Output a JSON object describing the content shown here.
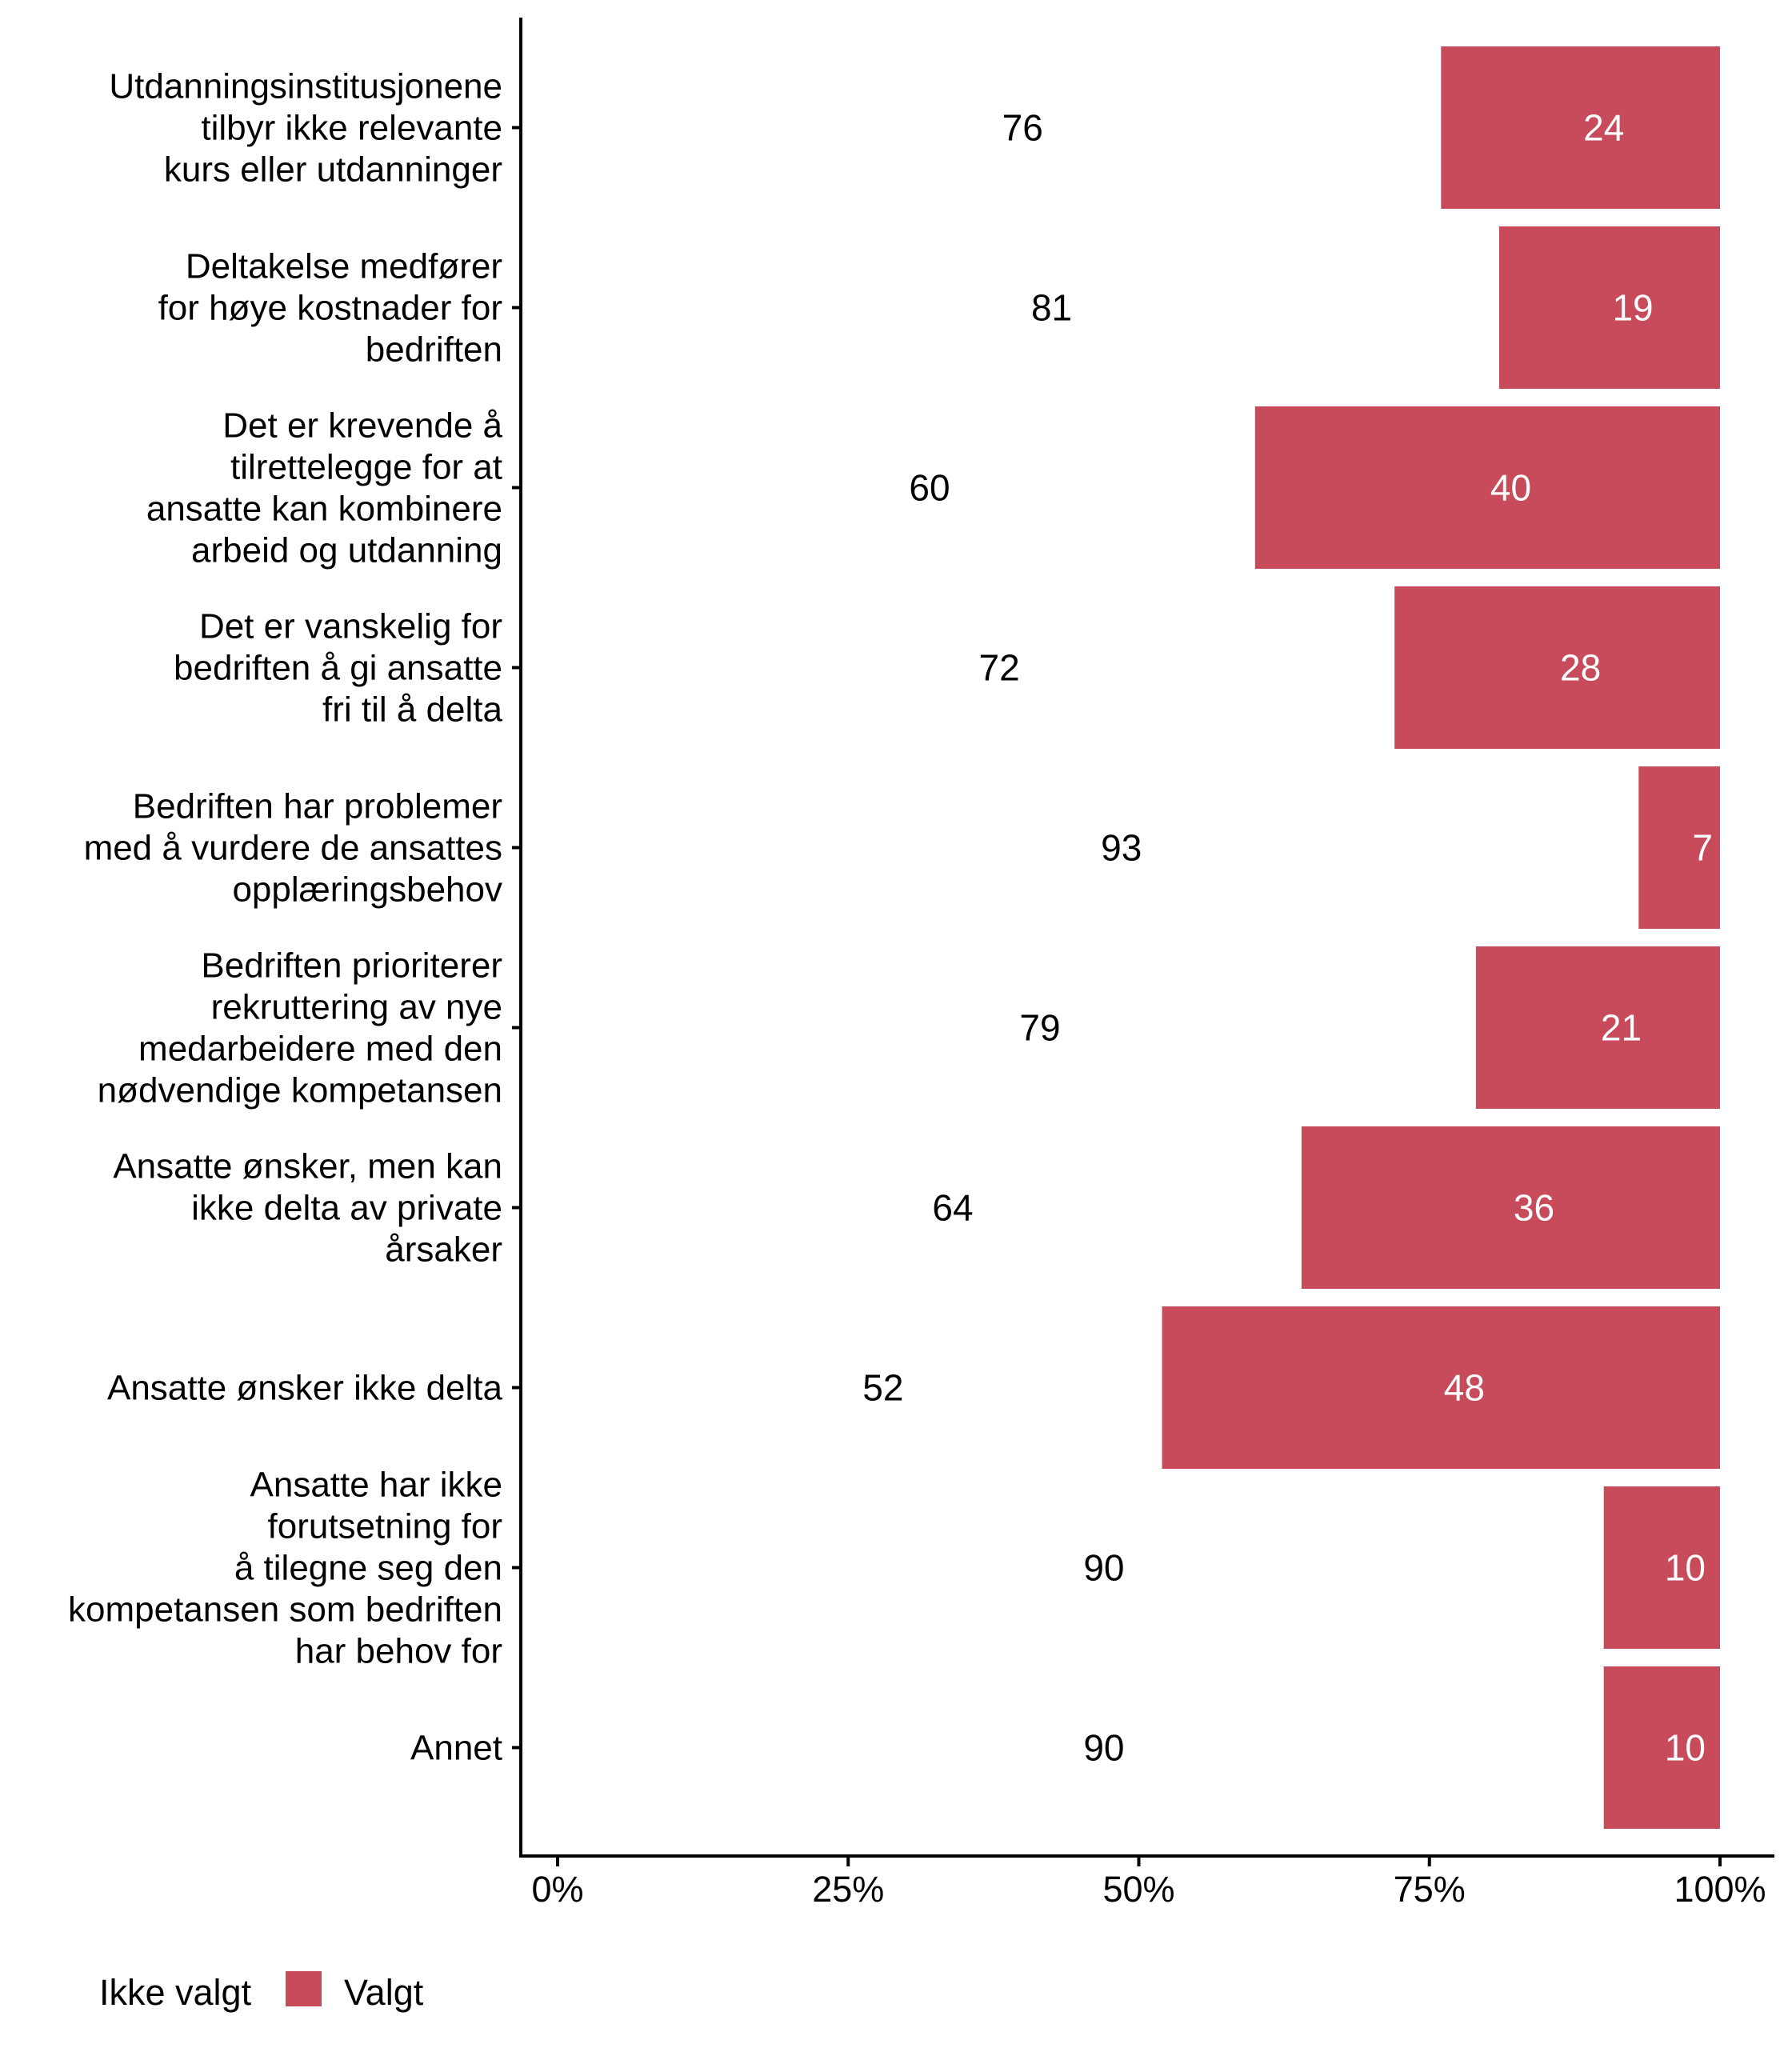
{
  "chart_data": {
    "type": "bar",
    "orientation": "horizontal",
    "stacked": true,
    "percent": true,
    "title": "",
    "xlabel": "",
    "ylabel": "",
    "xlim": [
      0,
      100
    ],
    "x_ticks": [
      "0%",
      "25%",
      "50%",
      "75%",
      "100%"
    ],
    "x_tick_values": [
      0,
      25,
      50,
      75,
      100
    ],
    "grid": false,
    "legend_position": "bottom-left",
    "categories": [
      [
        "Utdanningsinstitusjonene",
        "tilbyr ikke relevante",
        "kurs eller utdanninger"
      ],
      [
        "Deltakelse medfører",
        "for høye kostnader for",
        "bedriften"
      ],
      [
        "Det er krevende å",
        "tilrettelegge for at",
        "ansatte kan kombinere",
        "arbeid og utdanning"
      ],
      [
        "Det er vanskelig for",
        "bedriften å gi ansatte",
        "fri til å delta"
      ],
      [
        "Bedriften har problemer",
        "med å vurdere de ansattes",
        "opplæringsbehov"
      ],
      [
        "Bedriften prioriterer",
        "rekruttering av nye",
        "medarbeidere med den",
        "nødvendige kompetansen"
      ],
      [
        "Ansatte ønsker, men kan",
        "ikke delta av private",
        "årsaker"
      ],
      [
        "Ansatte ønsker ikke delta"
      ],
      [
        "Ansatte har ikke",
        "forutsetning for",
        "å tilegne seg den",
        "kompetansen som bedriften",
        "har behov for"
      ],
      [
        "Annet"
      ]
    ],
    "series": [
      {
        "name": "Ikke valgt",
        "color": "#FFFFFF",
        "label_color": "#000000",
        "values": [
          76,
          81,
          60,
          72,
          93,
          79,
          64,
          52,
          90,
          90
        ]
      },
      {
        "name": "Valgt",
        "color": "#C84B5B",
        "label_color": "#FFFFFF",
        "values": [
          24,
          19,
          40,
          28,
          7,
          21,
          36,
          48,
          10,
          10
        ]
      }
    ]
  }
}
